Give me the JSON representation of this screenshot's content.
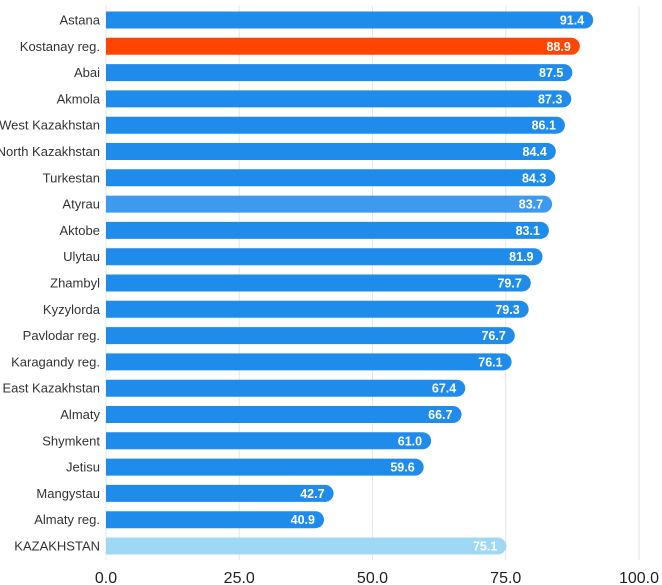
{
  "chart_data": {
    "type": "bar",
    "orientation": "horizontal",
    "categories": [
      "Astana",
      "Kostanay reg.",
      "Abai",
      "Akmola",
      "West Kazakhstan",
      "North Kazakhstan",
      "Turkestan",
      "Atyrau",
      "Aktobe",
      "Ulytau",
      "Zhambyl",
      "Kyzylorda",
      "Pavlodar reg.",
      "Karagandy reg.",
      "East Kazakhstan",
      "Almaty",
      "Shymkent",
      "Jetisu",
      "Mangystau",
      "Almaty reg.",
      "KAZAKHSTAN"
    ],
    "values": [
      91.4,
      88.9,
      87.5,
      87.3,
      86.1,
      84.4,
      84.3,
      83.7,
      83.1,
      81.9,
      79.7,
      79.3,
      76.7,
      76.1,
      67.4,
      66.7,
      61.0,
      59.6,
      42.7,
      40.9,
      75.1
    ],
    "value_labels": [
      "91.4",
      "88.9",
      "87.5",
      "87.3",
      "86.1",
      "84.4",
      "84.3",
      "83.7",
      "83.1",
      "81.9",
      "79.7",
      "79.3",
      "76.7",
      "76.1",
      "67.4",
      "66.7",
      "61.0",
      "59.6",
      "42.7",
      "40.9",
      "75.1"
    ],
    "bar_colors": [
      "#1f8ceb",
      "#ff4500",
      "#1f8ceb",
      "#1f8ceb",
      "#1f8ceb",
      "#1f8ceb",
      "#1f8ceb",
      "#3d9af0",
      "#1f8ceb",
      "#1f8ceb",
      "#1f8ceb",
      "#1f8ceb",
      "#1f8ceb",
      "#1f8ceb",
      "#1f8ceb",
      "#1f8ceb",
      "#1f8ceb",
      "#1f8ceb",
      "#1f8ceb",
      "#1f8ceb",
      "#9fd8f5"
    ],
    "xlim": [
      0,
      100
    ],
    "x_ticks": [
      0,
      25,
      50,
      75,
      100
    ],
    "x_tick_labels": [
      "0.0",
      "25.0",
      "50.0",
      "75.0",
      "100.0"
    ],
    "grid": true,
    "title": "",
    "xlabel": "",
    "ylabel": ""
  }
}
